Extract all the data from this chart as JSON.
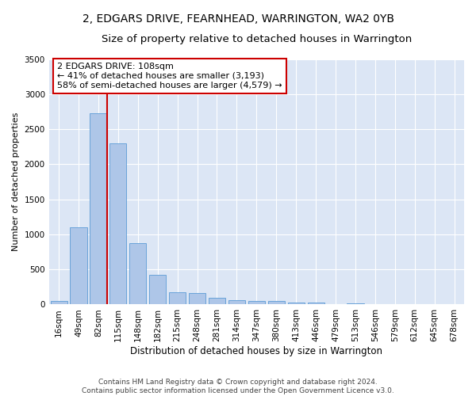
{
  "title": "2, EDGARS DRIVE, FEARNHEAD, WARRINGTON, WA2 0YB",
  "subtitle": "Size of property relative to detached houses in Warrington",
  "xlabel": "Distribution of detached houses by size in Warrington",
  "ylabel": "Number of detached properties",
  "categories": [
    "16sqm",
    "49sqm",
    "82sqm",
    "115sqm",
    "148sqm",
    "182sqm",
    "215sqm",
    "248sqm",
    "281sqm",
    "314sqm",
    "347sqm",
    "380sqm",
    "413sqm",
    "446sqm",
    "479sqm",
    "513sqm",
    "546sqm",
    "579sqm",
    "612sqm",
    "645sqm",
    "678sqm"
  ],
  "values": [
    50,
    1100,
    2730,
    2300,
    880,
    420,
    170,
    165,
    90,
    60,
    55,
    55,
    30,
    25,
    0,
    20,
    0,
    0,
    0,
    0,
    0
  ],
  "bar_color": "#aec6e8",
  "bar_edgecolor": "#5b9bd5",
  "vline_color": "#cc0000",
  "annotation_lines": [
    "2 EDGARS DRIVE: 108sqm",
    "← 41% of detached houses are smaller (3,193)",
    "58% of semi-detached houses are larger (4,579) →"
  ],
  "annotation_box_color": "white",
  "annotation_box_edgecolor": "#cc0000",
  "ylim": [
    0,
    3500
  ],
  "yticks": [
    0,
    500,
    1000,
    1500,
    2000,
    2500,
    3000,
    3500
  ],
  "background_color": "#dce6f5",
  "grid_color": "#ffffff",
  "footer_line1": "Contains HM Land Registry data © Crown copyright and database right 2024.",
  "footer_line2": "Contains public sector information licensed under the Open Government Licence v3.0.",
  "title_fontsize": 10,
  "subtitle_fontsize": 9.5,
  "xlabel_fontsize": 8.5,
  "ylabel_fontsize": 8,
  "tick_fontsize": 7.5,
  "annot_fontsize": 8
}
